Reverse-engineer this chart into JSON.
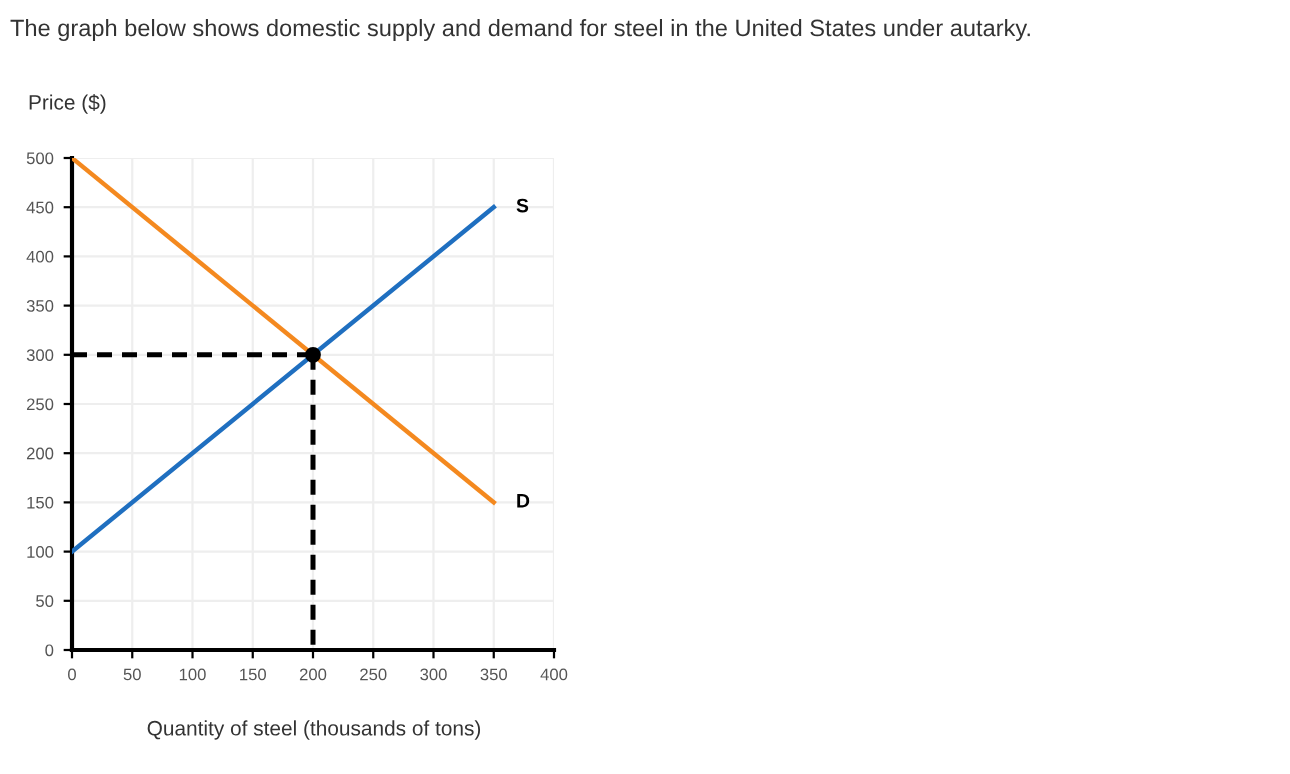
{
  "chart_data": {
    "type": "line",
    "title": "The graph below shows domestic supply and demand for steel in the United States under autarky.",
    "ylabel": "Price ($)",
    "xlabel": "Quantity of steel (thousands of tons)",
    "xlim": [
      0,
      400
    ],
    "xticks": [
      0,
      50,
      100,
      150,
      200,
      250,
      300,
      350,
      400
    ],
    "ylim": [
      0,
      500
    ],
    "yticks": [
      0,
      50,
      100,
      150,
      200,
      250,
      300,
      350,
      400,
      450,
      500
    ],
    "grid": true,
    "legend": false,
    "marker": "none",
    "series": [
      {
        "name": "S",
        "color": "#1f6fc0",
        "x": [
          0,
          350
        ],
        "values": [
          100,
          450
        ]
      },
      {
        "name": "D",
        "color": "#f4891f",
        "x": [
          0,
          350
        ],
        "values": [
          500,
          150
        ]
      },
      {
        "color": "#000000",
        "x": [
          0,
          200
        ],
        "values": [
          300,
          300
        ],
        "line_style": "dashed"
      },
      {
        "color": "#000000",
        "x": [
          200,
          200
        ],
        "values": [
          300,
          0
        ],
        "line_style": "dashed"
      },
      {
        "type": "scatter",
        "color": "#000000",
        "x": [
          200
        ],
        "values": [
          300
        ],
        "marker": "circle"
      }
    ]
  }
}
